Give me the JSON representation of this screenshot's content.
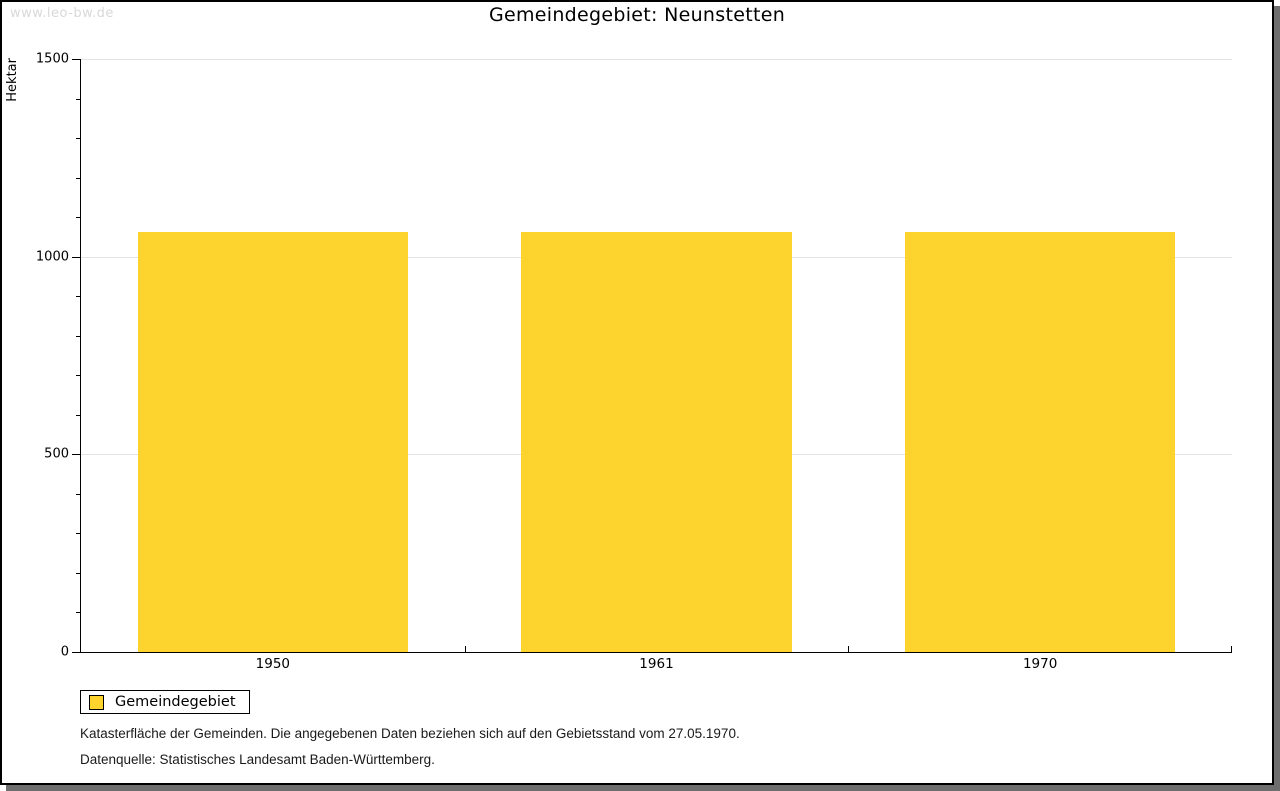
{
  "watermark": "www.leo-bw.de",
  "chart_data": {
    "type": "bar",
    "title": "Gemeindegebiet: Neunstetten",
    "xlabel": "",
    "ylabel": "Hektar",
    "categories": [
      "1950",
      "1961",
      "1970"
    ],
    "series": [
      {
        "name": "Gemeindegebiet",
        "values": [
          1063,
          1063,
          1063
        ]
      }
    ],
    "ylim": [
      0,
      1500
    ],
    "y_major_ticks": [
      0,
      500,
      1000,
      1500
    ],
    "y_minor_step": 100,
    "grid": "horizontal-at-major-ticks",
    "legend_position": "bottom-left"
  },
  "legend": {
    "label": "Gemeindegebiet"
  },
  "footnotes": {
    "line1": "Katasterfläche der Gemeinden. Die angegebenen Daten beziehen sich auf den Gebietsstand vom 27.05.1970.",
    "line2": "Datenquelle: Statistisches Landesamt Baden-Württemberg."
  },
  "colors": {
    "bar": "#fcd42d",
    "grid": "#e3e3e3",
    "axis": "#000000",
    "watermark": "#d9d9d9",
    "shadow": "#6e6e6e"
  }
}
